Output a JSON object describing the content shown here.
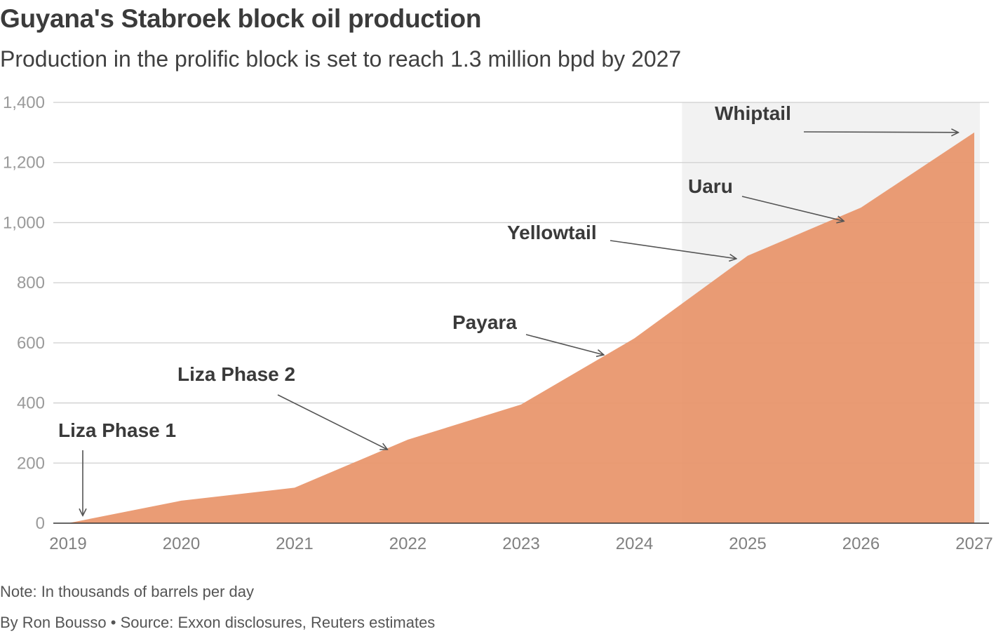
{
  "header": {
    "title": "Guyana's Stabroek block oil production",
    "subtitle": "Production in the prolific block is set to reach 1.3 million bpd by 2027"
  },
  "footer": {
    "note": "Note: In thousands of barrels per day",
    "credit": "By Ron Bousso • Source: Exxon disclosures, Reuters estimates"
  },
  "chart_data": {
    "type": "area",
    "title": "Guyana's Stabroek block oil production",
    "subtitle": "Production in the prolific block is set to reach 1.3 million bpd by 2027",
    "xlabel": "",
    "ylabel": "",
    "x_ticks": [
      "2019",
      "2020",
      "2021",
      "2022",
      "2023",
      "2024",
      "2025",
      "2026",
      "2027"
    ],
    "y_ticks": [
      "0",
      "200",
      "400",
      "600",
      "800",
      "1,000",
      "1,200",
      "1,400"
    ],
    "xlim": [
      2019,
      2027
    ],
    "ylim": [
      0,
      1400
    ],
    "grid": true,
    "series": [
      {
        "points": [
          {
            "x": 2019.0,
            "y": 0
          },
          {
            "x": 2020.0,
            "y": 75
          },
          {
            "x": 2021.0,
            "y": 118
          },
          {
            "x": 2022.0,
            "y": 278
          },
          {
            "x": 2023.0,
            "y": 395
          },
          {
            "x": 2024.0,
            "y": 615
          },
          {
            "x": 2025.0,
            "y": 890
          },
          {
            "x": 2026.0,
            "y": 1050
          },
          {
            "x": 2027.0,
            "y": 1300
          }
        ],
        "color": "#e8946a"
      }
    ],
    "shaded_region": {
      "x_start": 2024.42,
      "x_end": 2027.05,
      "color": "#f2f2f2"
    },
    "annotations": [
      {
        "label": "Liza Phase 1",
        "target_x": 2019.13,
        "target_y": 25
      },
      {
        "label": "Liza Phase 2",
        "target_x": 2021.82,
        "target_y": 245
      },
      {
        "label": "Payara",
        "target_x": 2023.73,
        "target_y": 560
      },
      {
        "label": "Yellowtail",
        "target_x": 2024.9,
        "target_y": 880
      },
      {
        "label": "Uaru",
        "target_x": 2025.85,
        "target_y": 1005
      },
      {
        "label": "Whiptail",
        "target_x": 2026.86,
        "target_y": 1300
      }
    ]
  }
}
